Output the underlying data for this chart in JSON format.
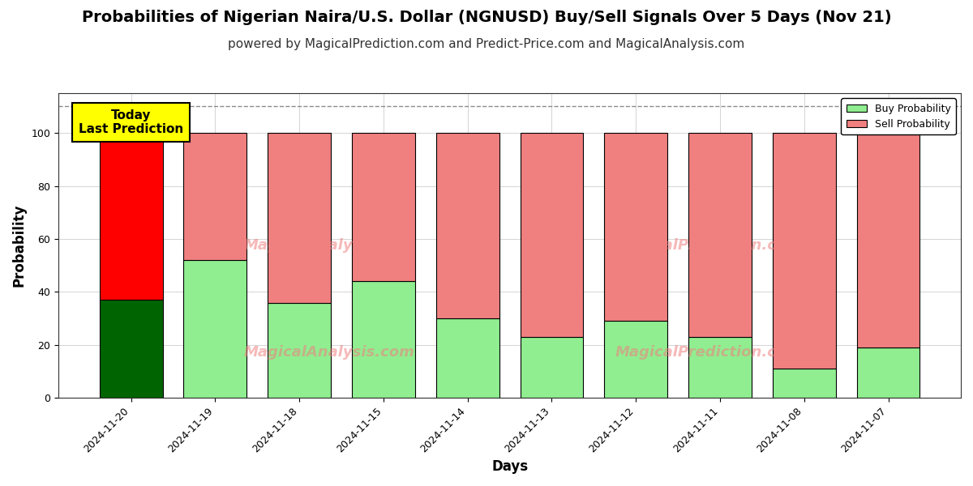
{
  "title": "Probabilities of Nigerian Naira/U.S. Dollar (NGNUSD) Buy/Sell Signals Over 5 Days (Nov 21)",
  "subtitle": "powered by MagicalPrediction.com and Predict-Price.com and MagicalAnalysis.com",
  "xlabel": "Days",
  "ylabel": "Probability",
  "categories": [
    "2024-11-20",
    "2024-11-19",
    "2024-11-18",
    "2024-11-15",
    "2024-11-14",
    "2024-11-13",
    "2024-11-12",
    "2024-11-11",
    "2024-11-08",
    "2024-11-07"
  ],
  "buy_values": [
    37,
    52,
    36,
    44,
    30,
    23,
    29,
    23,
    11,
    19
  ],
  "sell_values": [
    63,
    48,
    64,
    56,
    70,
    77,
    71,
    77,
    89,
    81
  ],
  "buy_color_today": "#006400",
  "sell_color_today": "#FF0000",
  "buy_color": "#90EE90",
  "sell_color": "#F08080",
  "bar_edge_color": "#000000",
  "annotation_text": "Today\nLast Prediction",
  "annotation_bg": "#FFFF00",
  "dashed_line_y": 110,
  "ylim": [
    0,
    115
  ],
  "yticks": [
    0,
    20,
    40,
    60,
    80,
    100
  ],
  "watermark1": "MagicalAnalysis.com",
  "watermark2": "MagicalPrediction.com",
  "watermark_color": "#F08080",
  "legend_buy_label": "Buy Probability",
  "legend_sell_label": "Sell Probability",
  "title_fontsize": 14,
  "subtitle_fontsize": 11,
  "axis_label_fontsize": 12,
  "tick_fontsize": 9,
  "background_color": "#ffffff",
  "grid_color": "#aaaaaa",
  "bar_width": 0.75
}
